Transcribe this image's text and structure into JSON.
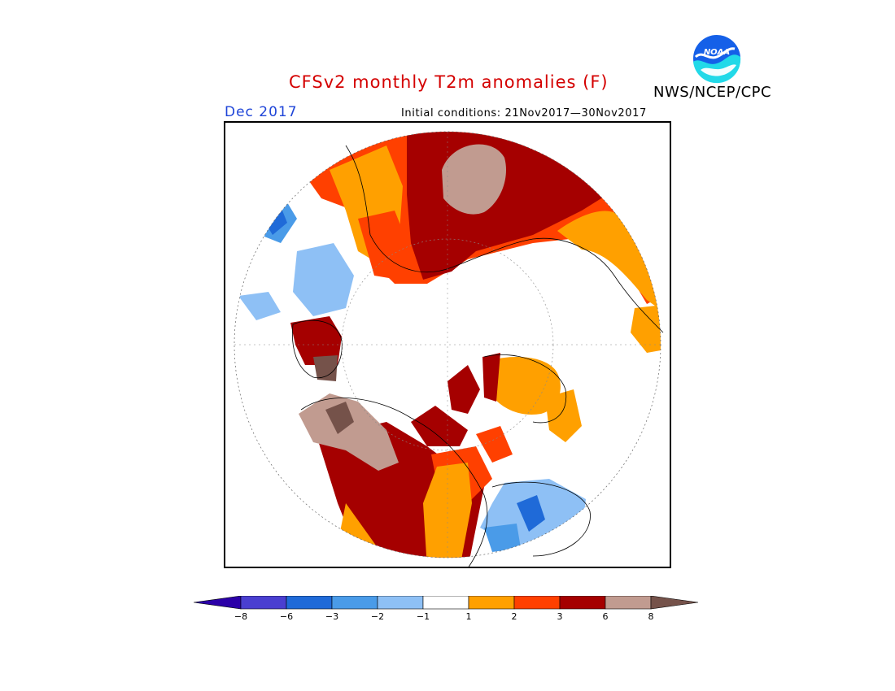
{
  "header": {
    "title": "CFSv2 monthly T2m anomalies (F)",
    "month": "Dec 2017",
    "initial_conditions": "Initial conditions: 21Nov2017—30Nov2017",
    "agency": "NWS/NCEP/CPC",
    "logo_text": "NOAA"
  },
  "legend": {
    "bins": [
      {
        "color": "#2b00a8"
      },
      {
        "color": "#4a3fd0"
      },
      {
        "color": "#1f6ad8"
      },
      {
        "color": "#4a9be8"
      },
      {
        "color": "#8ec0f5"
      },
      {
        "color": "#ffffff"
      },
      {
        "color": "#ffa000"
      },
      {
        "color": "#ff4000"
      },
      {
        "color": "#a50000"
      },
      {
        "color": "#c19b90"
      },
      {
        "color": "#75524a"
      }
    ],
    "ticks": [
      "−8",
      "−6",
      "−3",
      "−2",
      "−1",
      "1",
      "2",
      "3",
      "6",
      "8"
    ]
  }
}
